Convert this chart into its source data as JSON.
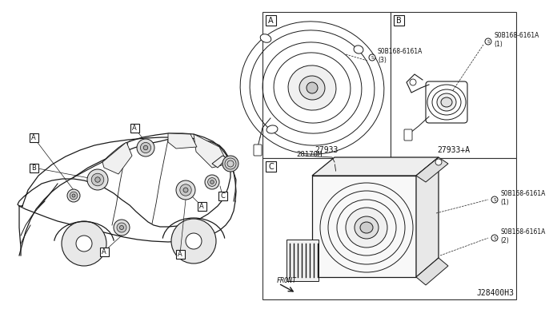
{
  "background_color": "#ffffff",
  "line_color": "#1a1a1a",
  "light_line": "#555555",
  "text_color": "#111111",
  "diagram_code": "J28400H3",
  "panel_border": "#333333",
  "part_A": "27933",
  "part_B": "27933+A",
  "part_C": "28170M",
  "bolt_A": "S0B168-6161A\n(3)",
  "bolt_B": "S0B168-6161A\n(1)",
  "bolt_C1": "S0B168-6161A\n(1)",
  "bolt_C2": "S0B168-6161A\n(2)",
  "front_label": "FRONT",
  "label_A": "A",
  "label_B": "B",
  "label_C": "C"
}
